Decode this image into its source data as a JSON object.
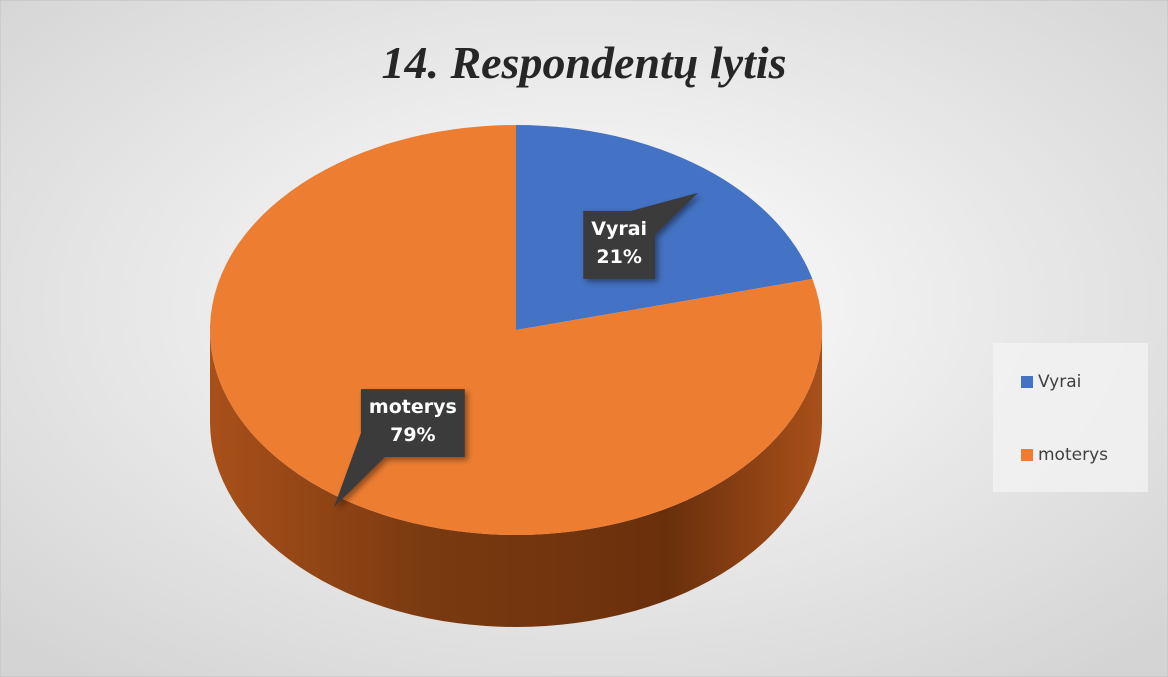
{
  "chart_data": {
    "type": "pie",
    "title": "14. Respondentų lytis",
    "categories": [
      "Vyrai",
      "moterys"
    ],
    "values": [
      21,
      79
    ],
    "value_labels": [
      "21%",
      "79%"
    ],
    "colors": [
      "#4472c4",
      "#ed7d31"
    ],
    "legend": "right"
  }
}
